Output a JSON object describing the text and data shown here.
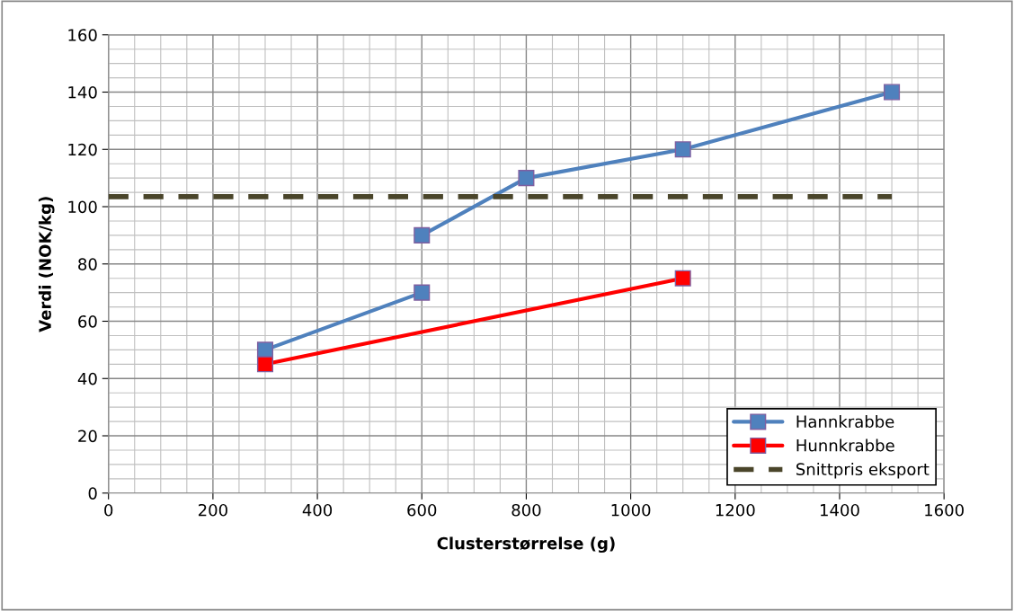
{
  "chart_data": {
    "type": "line",
    "xlabel": "Clusterstørrelse (g)",
    "ylabel": "Verdi (NOK/kg)",
    "xlim": [
      0,
      1600
    ],
    "xticks": [
      0,
      200,
      400,
      600,
      800,
      1000,
      1200,
      1400,
      1600
    ],
    "ylim": [
      0,
      160
    ],
    "yticks": [
      0,
      20,
      40,
      60,
      80,
      100,
      120,
      140,
      160
    ],
    "grid": true,
    "legend": "bottom right",
    "marker": "square",
    "line_style": "solid",
    "series": [
      {
        "name": "Hannkrabbe",
        "color": "#4f81bd",
        "x": [
          300,
          600
        ],
        "values": [
          50,
          70
        ]
      },
      {
        "color": "#4f81bd",
        "x": [
          600,
          800,
          1100,
          1500
        ],
        "values": [
          90,
          110,
          120,
          140
        ]
      },
      {
        "name": "Hunnkrabbe",
        "color": "#ff0000",
        "x": [
          300,
          1100
        ],
        "values": [
          45,
          75
        ]
      },
      {
        "name": "Snittpris eksport",
        "color": "#4a452a",
        "x": [
          0,
          1500
        ],
        "values": [
          103.5,
          103.5
        ],
        "marker": "none",
        "line_style": "dashed"
      }
    ]
  }
}
